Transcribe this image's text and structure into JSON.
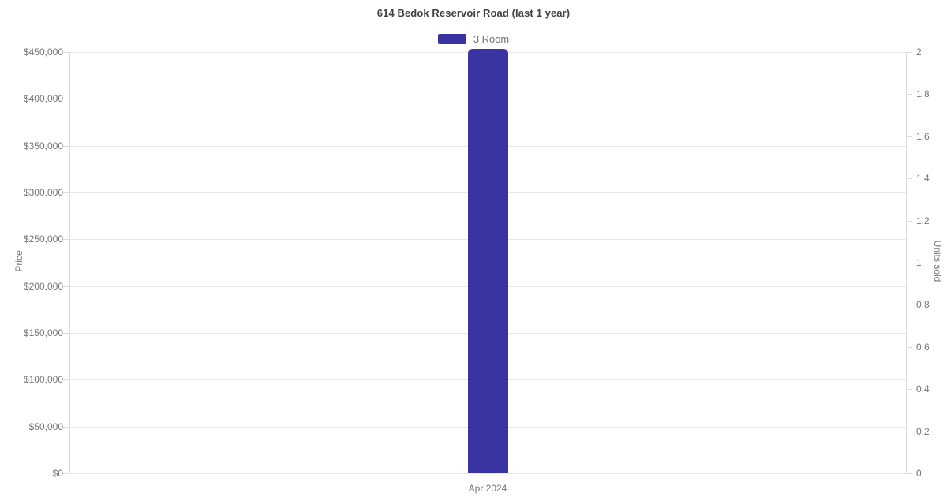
{
  "page": {
    "background": "#ffffff"
  },
  "colors": {
    "bar": "#3a34a2",
    "grid": "#e8e8e8",
    "axis_line": "#dcdcdc",
    "tick_label": "#757575",
    "title": "#424242",
    "legend_label": "#6e6e6e"
  },
  "chart_data": {
    "type": "bar",
    "title": "614 Bedok Reservoir Road (last 1 year)",
    "categories": [
      "Apr 2024"
    ],
    "series": [
      {
        "name": "3 Room",
        "color": "#3a34a2",
        "yaxis": "left",
        "values": [
          453000
        ]
      }
    ],
    "legend": {
      "position": "top",
      "items": [
        {
          "label": "3 Room",
          "color": "#3a34a2"
        }
      ]
    },
    "left_axis": {
      "label": "Price",
      "min": 0,
      "max": 450000,
      "tick_step": 50000,
      "ticks": [
        {
          "value": 0,
          "label": "$0"
        },
        {
          "value": 50000,
          "label": "$50,000"
        },
        {
          "value": 100000,
          "label": "$100,000"
        },
        {
          "value": 150000,
          "label": "$150,000"
        },
        {
          "value": 200000,
          "label": "$200,000"
        },
        {
          "value": 250000,
          "label": "$250,000"
        },
        {
          "value": 300000,
          "label": "$300,000"
        },
        {
          "value": 350000,
          "label": "$350,000"
        },
        {
          "value": 400000,
          "label": "$400,000"
        },
        {
          "value": 450000,
          "label": "$450,000"
        }
      ]
    },
    "right_axis": {
      "label": "Units sold",
      "min": 0,
      "max": 2,
      "tick_step": 0.2,
      "ticks": [
        {
          "value": 0,
          "label": "0"
        },
        {
          "value": 0.2,
          "label": "0.2"
        },
        {
          "value": 0.4,
          "label": "0.4"
        },
        {
          "value": 0.6,
          "label": "0.6"
        },
        {
          "value": 0.8,
          "label": "0.8"
        },
        {
          "value": 1,
          "label": "1"
        },
        {
          "value": 1.2,
          "label": "1.2"
        },
        {
          "value": 1.4,
          "label": "1.4"
        },
        {
          "value": 1.6,
          "label": "1.6"
        },
        {
          "value": 1.8,
          "label": "1.8"
        },
        {
          "value": 2,
          "label": "2"
        }
      ]
    },
    "grid": true
  }
}
